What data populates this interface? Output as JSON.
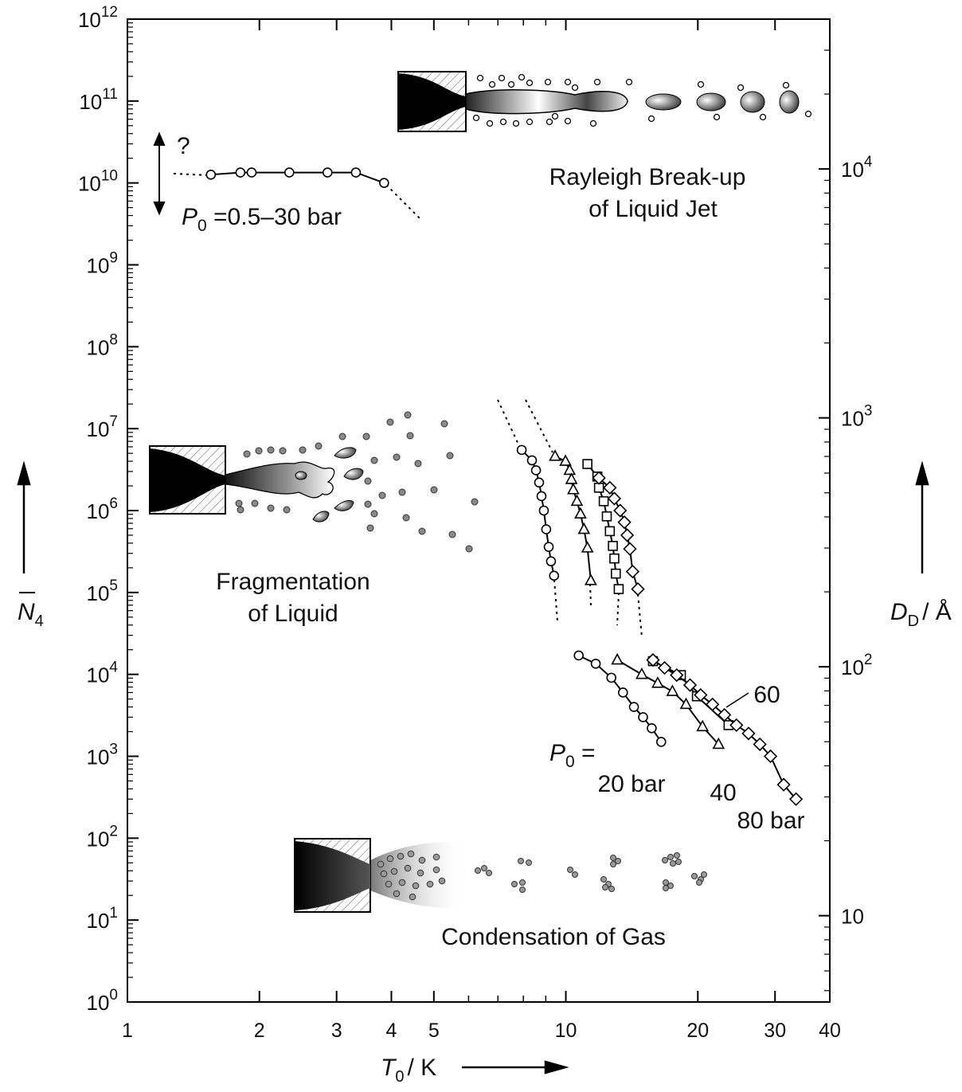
{
  "chart_data": {
    "type": "scatter",
    "xscale": "log",
    "yscale": "log",
    "y2scale": "log",
    "xlabel": {
      "main": "T",
      "sub": "0",
      "rest": "/ K"
    },
    "ylabel": {
      "main": "N",
      "sub": "4"
    },
    "y2label": {
      "main": "D",
      "sub": "D",
      "rest": "/ Å"
    },
    "xlim": [
      1,
      40
    ],
    "ylim": [
      1,
      1000000000000
    ],
    "y2lim": [
      4.5,
      40000
    ],
    "xticks": [
      1,
      2,
      3,
      4,
      5,
      10,
      20,
      30,
      40
    ],
    "xminorticks": [
      6,
      7,
      8,
      9
    ],
    "yticks": [
      {
        "value": 1,
        "label": "10",
        "exponent": "0"
      },
      {
        "value": 10,
        "label": "10",
        "exponent": "1"
      },
      {
        "value": 100,
        "label": "10",
        "exponent": "2"
      },
      {
        "value": 1000,
        "label": "10",
        "exponent": "3"
      },
      {
        "value": 10000,
        "label": "10",
        "exponent": "4"
      },
      {
        "value": 100000,
        "label": "10",
        "exponent": "5"
      },
      {
        "value": 1000000,
        "label": "10",
        "exponent": "6"
      },
      {
        "value": 10000000,
        "label": "10",
        "exponent": "7"
      },
      {
        "value": 100000000,
        "label": "10",
        "exponent": "8"
      },
      {
        "value": 1000000000,
        "label": "10",
        "exponent": "9"
      },
      {
        "value": 10000000000,
        "label": "10",
        "exponent": "10"
      },
      {
        "value": 100000000000,
        "label": "10",
        "exponent": "11"
      },
      {
        "value": 1000000000000,
        "label": "10",
        "exponent": "12"
      }
    ],
    "yminor": [
      2,
      3,
      4,
      5,
      6,
      7,
      8,
      9
    ],
    "y2ticks": [
      10,
      {
        "value": 100,
        "label": "10",
        "exponent": "2"
      },
      {
        "value": 1000,
        "label": "10",
        "exponent": "3"
      },
      {
        "value": 10000,
        "label": "10",
        "exponent": "4"
      }
    ],
    "y2minor": [
      2,
      3,
      4,
      5,
      6,
      7,
      8,
      9
    ],
    "series": [
      {
        "marker": "circle",
        "color": "#000000",
        "x": [
          1.55,
          1.81,
          1.92,
          2.34,
          2.86,
          3.32,
          3.85
        ],
        "values": [
          12600000000,
          13400000000,
          13400000000,
          13400000000,
          13400000000,
          13400000000,
          10000000000
        ]
      },
      {
        "marker": "circle",
        "color": "#000000",
        "x": [
          7.93,
          8.37,
          8.55,
          8.69,
          8.8,
          8.91,
          9.02,
          9.14,
          9.25,
          9.4
        ],
        "values": [
          5500000,
          4100000,
          3100000,
          2200000,
          1500000,
          1000000,
          590000,
          360000,
          240000,
          160000
        ]
      },
      {
        "marker": "triangle",
        "color": "#000000",
        "x": [
          9.45,
          9.98,
          10.2,
          10.3,
          10.4,
          10.6,
          10.8,
          11.0,
          11.2,
          11.4
        ],
        "values": [
          4600000,
          4000000,
          3100000,
          2400000,
          1800000,
          1300000,
          910000,
          590000,
          350000,
          140000
        ]
      },
      {
        "marker": "square",
        "color": "#000000",
        "x": [
          11.2,
          11.8,
          11.9,
          12.2,
          12.4,
          12.6,
          12.8,
          12.9,
          13.0,
          13.2
        ],
        "values": [
          3700000,
          2600000,
          1900000,
          1300000,
          850000,
          560000,
          370000,
          260000,
          170000,
          110000
        ]
      },
      {
        "marker": "diamond",
        "color": "#000000",
        "x": [
          11.9,
          12.6,
          12.9,
          13.3,
          13.6,
          13.8,
          14.0,
          14.2,
          14.6
        ],
        "values": [
          2500000,
          1900000,
          1400000,
          1000000,
          720000,
          500000,
          340000,
          180000,
          110000
        ]
      },
      {
        "marker": "circle",
        "color": "#000000",
        "x": [
          10.7,
          11.7,
          12.7,
          13.5,
          14.3,
          15.0,
          15.7,
          16.5
        ],
        "values": [
          17000,
          13500,
          9100,
          6000,
          4000,
          3000,
          2200,
          1500
        ]
      },
      {
        "marker": "triangle",
        "color": "#000000",
        "x": [
          13.1,
          14.9,
          16.2,
          17.5,
          18.8,
          20.5,
          22.3
        ],
        "values": [
          15000,
          10000,
          7800,
          6200,
          4300,
          2300,
          1400
        ]
      },
      {
        "marker": "square",
        "color": "#000000",
        "x": [
          15.8,
          18.3,
          19.9,
          23.5
        ],
        "values": [
          14500,
          9800,
          5400,
          2400
        ]
      },
      {
        "marker": "diamond",
        "color": "#000000",
        "x": [
          15.8,
          16.8,
          17.9,
          19.2,
          20.3,
          21.6,
          23.0,
          24.5,
          26.1,
          27.7,
          29.3,
          31.4,
          33.5
        ],
        "values": [
          15000,
          12000,
          9800,
          7400,
          5600,
          4300,
          3200,
          2400,
          1900,
          1400,
          1000,
          450,
          300
        ]
      }
    ],
    "annotations": [
      {
        "text": "?"
      },
      {
        "main": "P",
        "sub": "0",
        "rest": " =0.5–30 bar"
      },
      {
        "text": "Rayleigh Break-up"
      },
      {
        "text": "of Liquid Jet"
      },
      {
        "text": "Fragmentation"
      },
      {
        "text": "of Liquid"
      },
      {
        "text": "Condensation of Gas"
      },
      {
        "main": "P",
        "sub": "0",
        "rest": " ="
      },
      {
        "text": "20 bar"
      },
      {
        "text": "40"
      },
      {
        "text": "60"
      },
      {
        "text": "80 bar"
      }
    ]
  }
}
